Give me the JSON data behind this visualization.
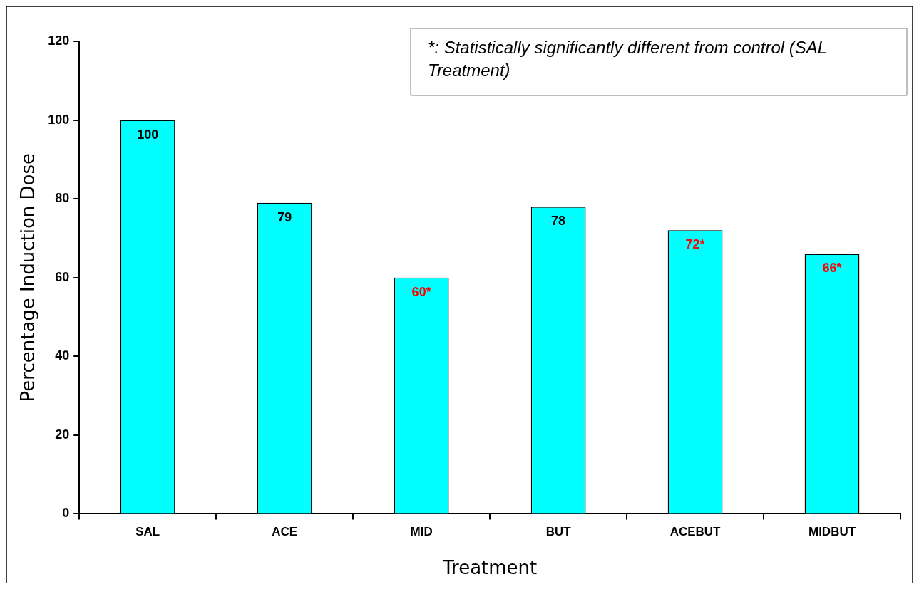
{
  "chart_data": {
    "type": "bar",
    "xlabel": "Treatment",
    "ylabel": "Percentage Induction Dose",
    "categories": [
      "SAL",
      "ACE",
      "MID",
      "BUT",
      "ACEBUT",
      "MIDBUT"
    ],
    "values": [
      100,
      79,
      60,
      78,
      72,
      66
    ],
    "value_labels": [
      "100",
      "79",
      "60*",
      "78",
      "72*",
      "66*"
    ],
    "color": "#00ffff",
    "ylim": [
      0,
      120
    ],
    "yticks": [
      0,
      20,
      40,
      60,
      80,
      100,
      120
    ],
    "grid": false,
    "legend": false,
    "annotations": [
      "*: Statistically significantly different from control (SAL Treatment)"
    ]
  }
}
